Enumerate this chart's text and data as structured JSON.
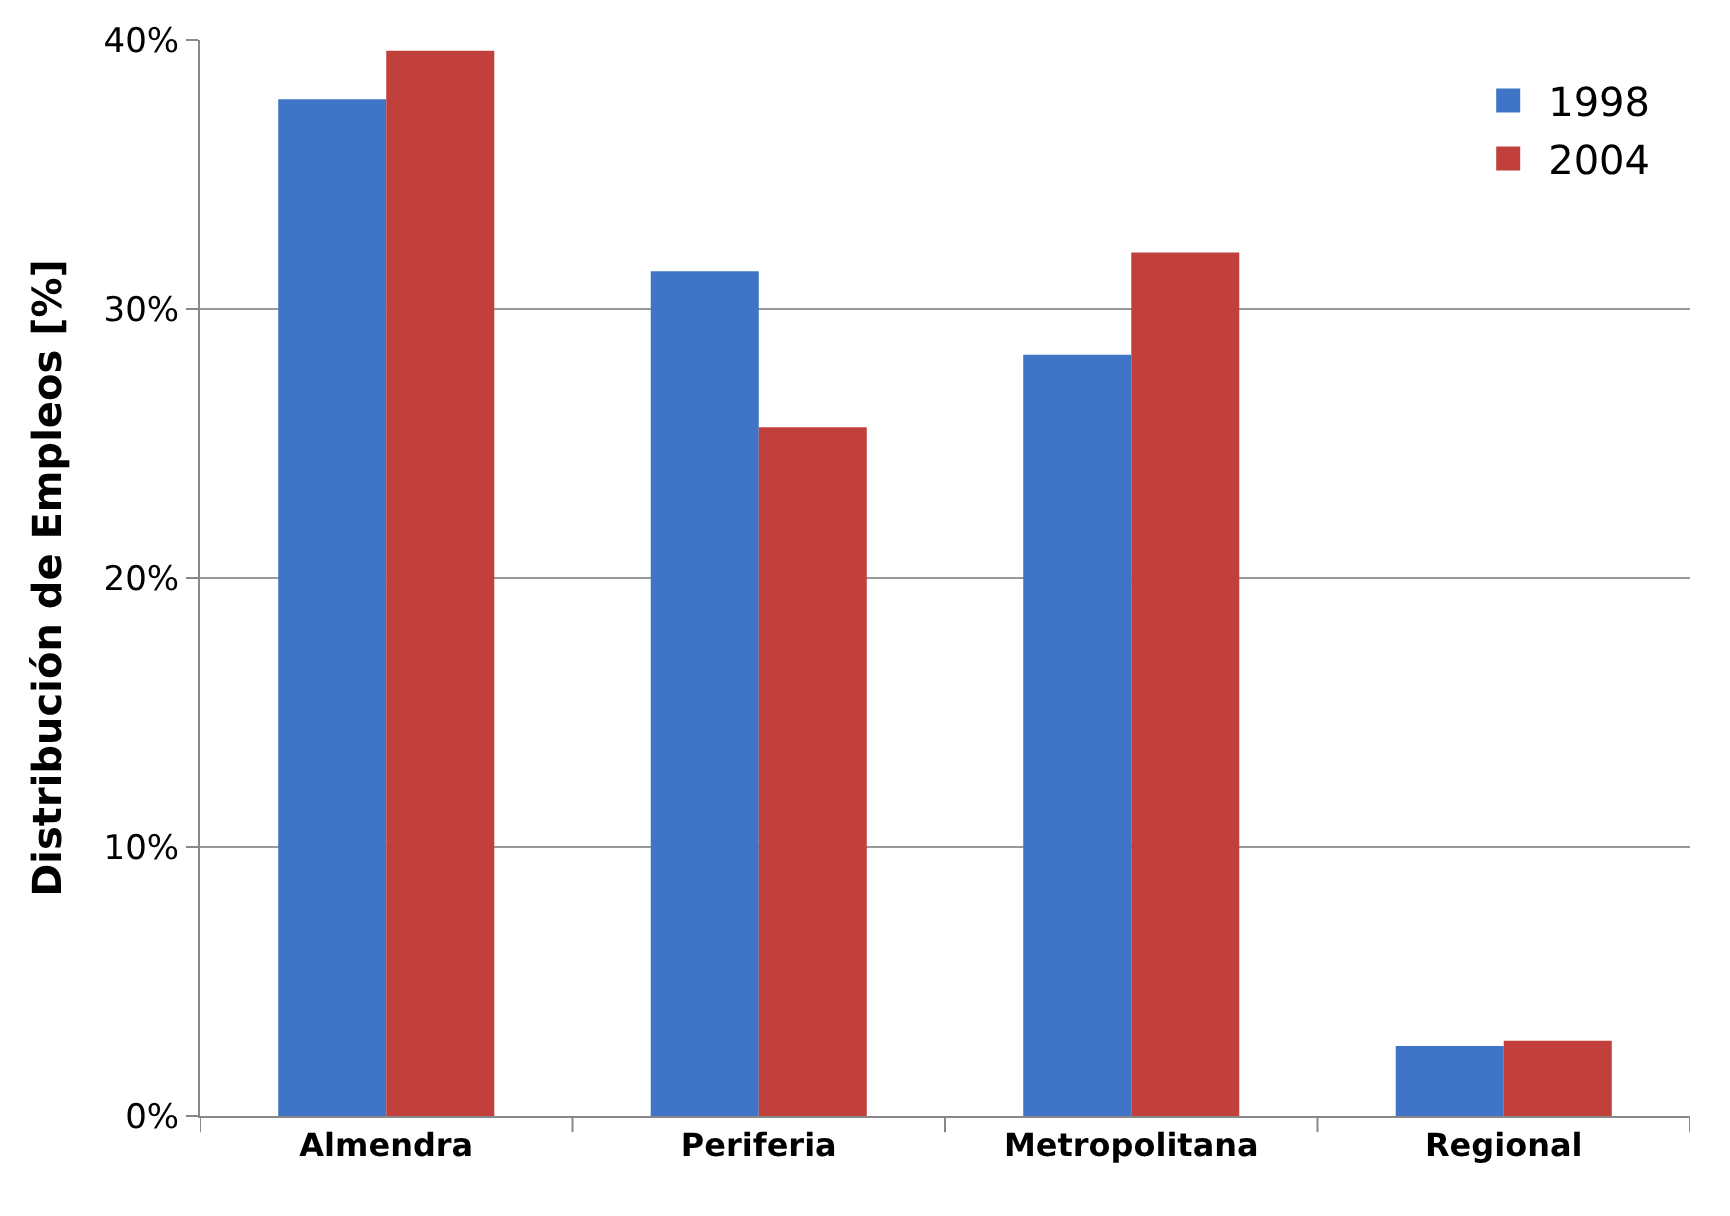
{
  "chart_data": {
    "type": "bar",
    "ylabel": "Distribución de Empleos [%]",
    "categories": [
      "Almendra",
      "Periferia",
      "Metropolitana",
      "Regional"
    ],
    "series": [
      {
        "name": "1998",
        "color": "#3f74c6",
        "values": [
          37.8,
          31.4,
          28.3,
          2.6
        ]
      },
      {
        "name": "2004",
        "color": "#c2403c",
        "values": [
          39.6,
          25.6,
          32.1,
          2.8
        ]
      }
    ],
    "ylim": [
      0,
      40
    ],
    "yticks": [
      {
        "value": 0,
        "label": "0%"
      },
      {
        "value": 10,
        "label": "10%"
      },
      {
        "value": 20,
        "label": "20%"
      },
      {
        "value": 30,
        "label": "30%"
      },
      {
        "value": 40,
        "label": "40%"
      }
    ],
    "grid": "y",
    "legend": "top right"
  }
}
